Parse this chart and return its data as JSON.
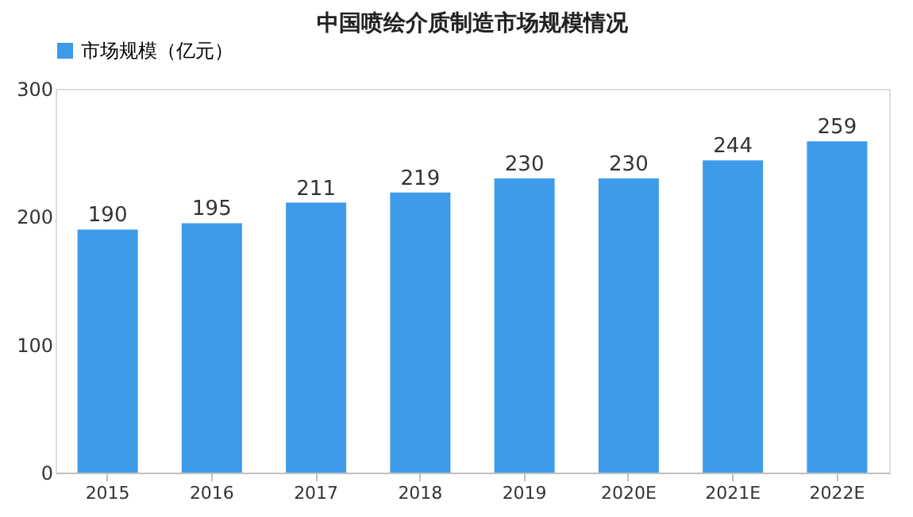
{
  "chart_data": {
    "type": "bar",
    "title": "中国喷绘介质制造市场规模情况",
    "categories": [
      "2015",
      "2016",
      "2017",
      "2018",
      "2019",
      "2020E",
      "2021E",
      "2022E"
    ],
    "series": [
      {
        "name": "市场规模（亿元）",
        "color": "#3d9be9",
        "values": [
          190,
          195,
          211,
          219,
          230,
          230,
          244,
          259
        ]
      }
    ],
    "ylim": [
      0,
      300
    ],
    "yticks": [
      0,
      100,
      200,
      300
    ],
    "grid": false,
    "legend": "top",
    "data_labels": true
  }
}
